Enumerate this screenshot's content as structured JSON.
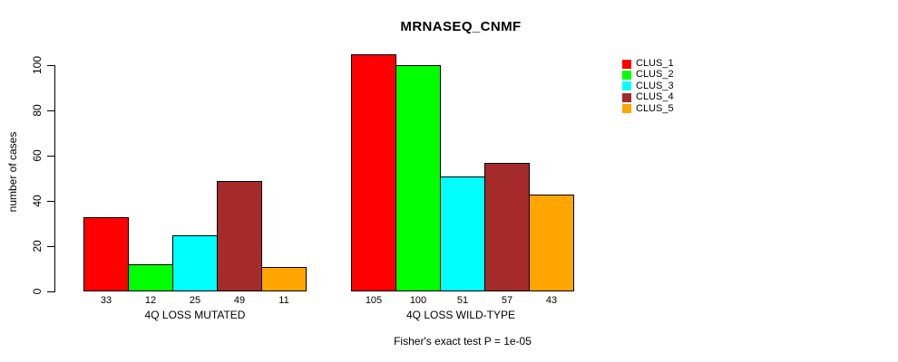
{
  "chart_data": {
    "type": "bar",
    "title": "MRNASEQ_CNMF",
    "ylabel": "number of cases",
    "ylim": [
      0,
      105
    ],
    "yticks": [
      0,
      20,
      40,
      60,
      80,
      100
    ],
    "grid": false,
    "legend_position": "right",
    "bar_value_labels": true,
    "categories": [
      "4Q LOSS MUTATED",
      "4Q LOSS WILD-TYPE"
    ],
    "series": [
      {
        "name": "CLUS_1",
        "color": "#FF0000",
        "values": [
          33,
          105
        ]
      },
      {
        "name": "CLUS_2",
        "color": "#00FF00",
        "values": [
          12,
          100
        ]
      },
      {
        "name": "CLUS_3",
        "color": "#00FFFF",
        "values": [
          25,
          51
        ]
      },
      {
        "name": "CLUS_4",
        "color": "#A52A2A",
        "values": [
          49,
          57
        ]
      },
      {
        "name": "CLUS_5",
        "color": "#FFA500",
        "values": [
          11,
          43
        ]
      }
    ],
    "footer": "Fisher's exact test P = 1e-05"
  }
}
